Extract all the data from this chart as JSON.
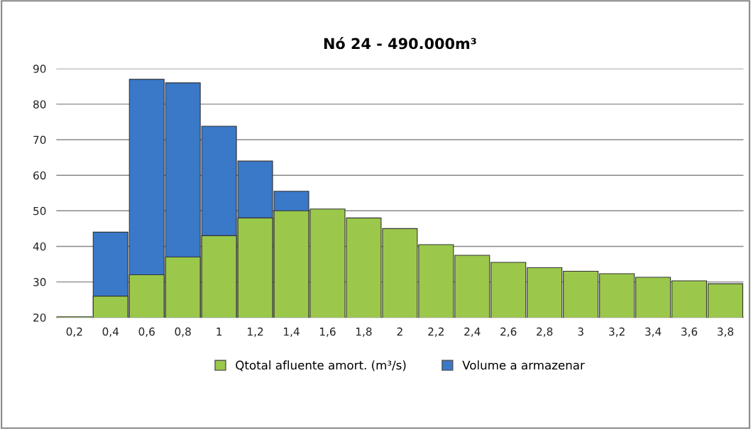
{
  "chart_data": {
    "type": "bar",
    "title": "Nó 24 - 490.000m³",
    "categories": [
      "0,2",
      "0,4",
      "0,6",
      "0,8",
      "1",
      "1,2",
      "1,4",
      "1,6",
      "1,8",
      "2",
      "2,2",
      "2,4",
      "2,6",
      "2,8",
      "3",
      "3,2",
      "3,4",
      "3,6",
      "3,8"
    ],
    "series": [
      {
        "name": "Qtotal afluente amort. (m³/s)",
        "color": "#9bc84b",
        "values": [
          20.2,
          26,
          32,
          37,
          43,
          48,
          50,
          50.5,
          48,
          45,
          40.5,
          37.5,
          35.5,
          34,
          33,
          32.3,
          31.3,
          30.3,
          29.5
        ]
      },
      {
        "name": "Volume a armazenar",
        "color": "#3a78c8",
        "values": [
          null,
          44,
          87,
          86,
          73.8,
          64,
          55.5,
          null,
          null,
          null,
          null,
          null,
          null,
          null,
          null,
          null,
          null,
          null,
          null
        ]
      }
    ],
    "ylim": [
      20,
      90
    ],
    "yticks": [
      20,
      30,
      40,
      50,
      60,
      70,
      80,
      90
    ],
    "grid": "y",
    "legend": "bottom"
  }
}
